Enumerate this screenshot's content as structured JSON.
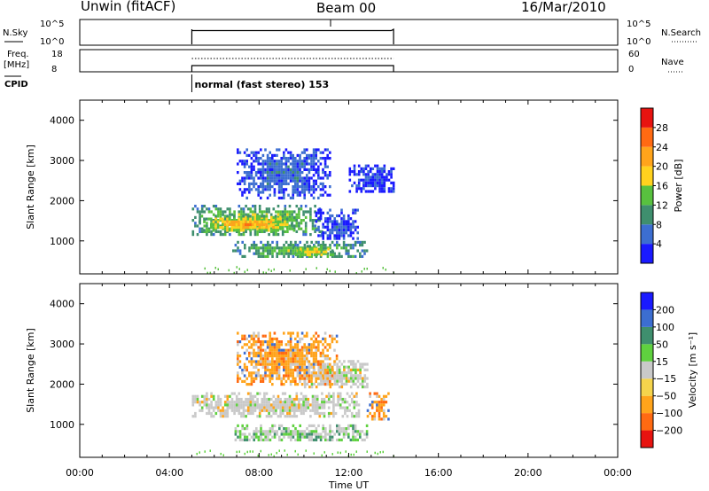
{
  "header": {
    "station": "Unwin (fitACF)",
    "beam": "Beam 00",
    "date": "16/Mar/2010"
  },
  "top_panels": {
    "nsky": {
      "label": "N.Sky",
      "ticks_left": [
        "10^5",
        "10^0"
      ],
      "ticks_right": [
        "10^5",
        "10^0"
      ],
      "right_label": "N.Search"
    },
    "freq": {
      "label_line1": "Freq.",
      "label_line2": "[MHz]",
      "ticks_left": [
        "18",
        "8"
      ],
      "ticks_right": [
        "60",
        "0"
      ],
      "right_label": "Nave"
    },
    "cpid": {
      "label": "CPID",
      "text": "normal (fast stereo) 153"
    }
  },
  "colors": {
    "power": [
      "#1a1aff",
      "#3c6ed1",
      "#3f8f6e",
      "#58c13f",
      "#ffd21e",
      "#ffa41b",
      "#ff6a12",
      "#e81310"
    ],
    "velocity": [
      "#e81310",
      "#ff6a12",
      "#ffa41b",
      "#f5d44c",
      "#c9c9c9",
      "#5fd13f",
      "#3f8f6e",
      "#3c6ed1",
      "#1a1aff"
    ],
    "trace": "#000000"
  },
  "chart_data": [
    {
      "type": "heatmap",
      "name": "power",
      "ylabel": "Slant Range [km]",
      "yticks": [
        "1000",
        "2000",
        "3000",
        "4000"
      ],
      "ylim": [
        180,
        4500
      ],
      "xlim": [
        0,
        24
      ],
      "colorbar_label": "Power [dB]",
      "colorbar_ticks": [
        "4",
        "8",
        "12",
        "16",
        "20",
        "24",
        "28"
      ],
      "colorbar_range": [
        0,
        32
      ],
      "features": [
        {
          "t0": 5.0,
          "t1": 10.8,
          "r0": 1150,
          "r1": 1900,
          "level": 16
        },
        {
          "t0": 5.3,
          "t1": 9.6,
          "r0": 1250,
          "r1": 1650,
          "level": 22
        },
        {
          "t0": 6.8,
          "t1": 12.8,
          "r0": 580,
          "r1": 1000,
          "level": 14
        },
        {
          "t0": 9.5,
          "t1": 11.3,
          "r0": 620,
          "r1": 900,
          "level": 20
        },
        {
          "t0": 7.0,
          "t1": 11.2,
          "r0": 2100,
          "r1": 3300,
          "level": 6
        },
        {
          "t0": 10.5,
          "t1": 12.4,
          "r0": 1050,
          "r1": 1800,
          "level": 5
        },
        {
          "t0": 12.0,
          "t1": 14.0,
          "r0": 2200,
          "r1": 2900,
          "level": 4
        }
      ]
    },
    {
      "type": "heatmap",
      "name": "velocity",
      "ylabel": "Slant Range [km]",
      "yticks": [
        "1000",
        "2000",
        "3000",
        "4000"
      ],
      "ylim": [
        180,
        4500
      ],
      "xlim": [
        0,
        24
      ],
      "xticks": [
        "00:00",
        "04:00",
        "08:00",
        "12:00",
        "16:00",
        "20:00",
        "00:00"
      ],
      "xlabel": "Time UT",
      "colorbar_label": "Velocity [m s⁻¹]",
      "colorbar_ticks": [
        "200",
        "100",
        "50",
        "15",
        "−15",
        "−50",
        "−100",
        "−200"
      ],
      "features": [
        {
          "t0": 5.0,
          "t1": 12.5,
          "r0": 1200,
          "r1": 1800,
          "dominant": "0"
        },
        {
          "t0": 10.0,
          "t1": 12.8,
          "r0": 1900,
          "r1": 2600,
          "dominant": "0"
        },
        {
          "t0": 6.8,
          "t1": 12.8,
          "r0": 580,
          "r1": 1000,
          "dominant": "0/+50"
        },
        {
          "t0": 7.0,
          "t1": 11.5,
          "r0": 2000,
          "r1": 3300,
          "dominant": "-50"
        },
        {
          "t0": 12.8,
          "t1": 13.8,
          "r0": 1100,
          "r1": 1800,
          "dominant": "-50"
        }
      ]
    }
  ]
}
